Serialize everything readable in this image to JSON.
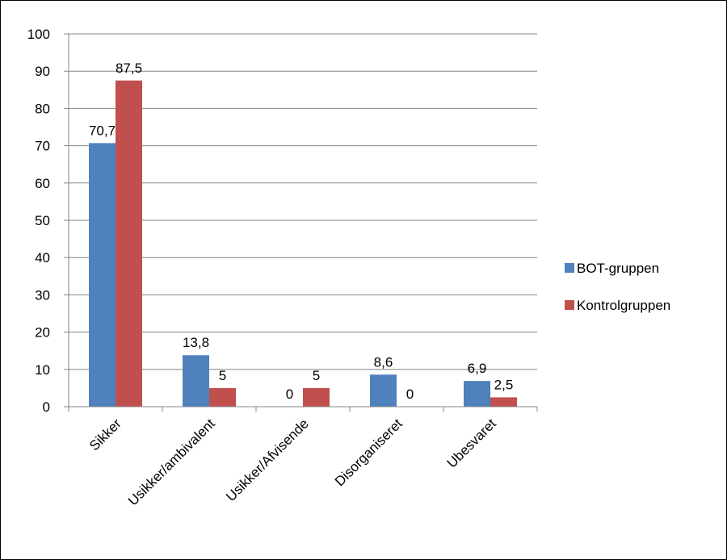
{
  "chart_data": {
    "type": "bar",
    "title": "",
    "xlabel": "",
    "ylabel": "",
    "ylim": [
      0,
      100
    ],
    "yticks": [
      0,
      10,
      20,
      30,
      40,
      50,
      60,
      70,
      80,
      90,
      100
    ],
    "grid": true,
    "legend_position": "right",
    "categories": [
      "Sikker",
      "Usikker/ambivalent",
      "Usikker/Afvisende",
      "Disorganiseret",
      "Ubesvaret"
    ],
    "series": [
      {
        "name": "BOT-gruppen",
        "color": "#4F81BD",
        "values": [
          70.7,
          13.8,
          0,
          8.6,
          6.9
        ],
        "labels": [
          "70,7",
          "13,8",
          "0",
          "8,6",
          "6,9"
        ]
      },
      {
        "name": "Kontrolgruppen",
        "color": "#C0504D",
        "values": [
          87.5,
          5,
          5,
          0,
          2.5
        ],
        "labels": [
          "87,5",
          "5",
          "5",
          "0",
          "2,5"
        ]
      }
    ]
  }
}
